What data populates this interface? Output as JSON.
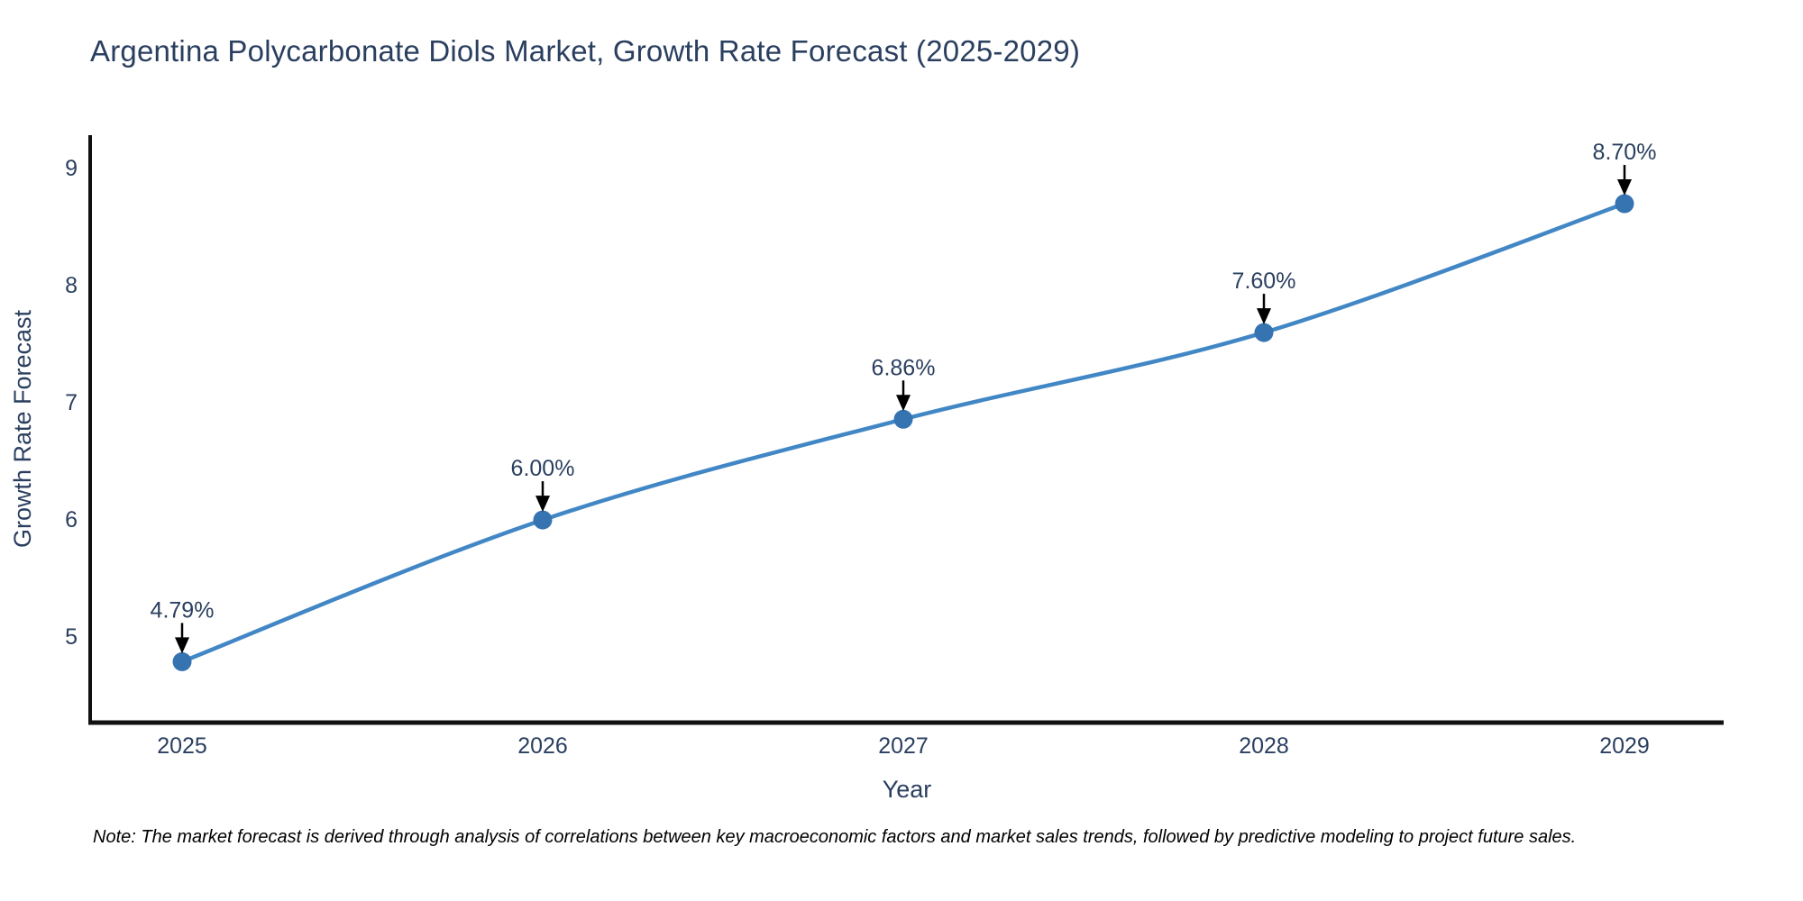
{
  "note": "Note: The market forecast is derived through analysis of correlations between key macroeconomic factors and market sales trends, followed by predictive modeling to project future sales.",
  "chart_data": {
    "type": "line",
    "title": "Argentina Polycarbonate Diols Market, Growth Rate Forecast (2025-2029)",
    "x": [
      "2025",
      "2026",
      "2027",
      "2028",
      "2029"
    ],
    "values": [
      4.79,
      6.0,
      6.86,
      7.6,
      8.7
    ],
    "point_labels": [
      "4.79%",
      "6.00%",
      "6.86%",
      "7.60%",
      "8.70%"
    ],
    "xlabel": "Year",
    "ylabel": "Growth Rate Forecast",
    "yticks": [
      5,
      6,
      7,
      8,
      9
    ],
    "ylim": [
      4.27,
      9.285
    ],
    "grid": false,
    "legend": "none",
    "line_shape": "spline",
    "colors": {
      "line": "#4287c5",
      "marker": "#3573b1",
      "annotation_arrow": "#000000",
      "text": "#2a3f5f",
      "axis": "#111111"
    }
  }
}
